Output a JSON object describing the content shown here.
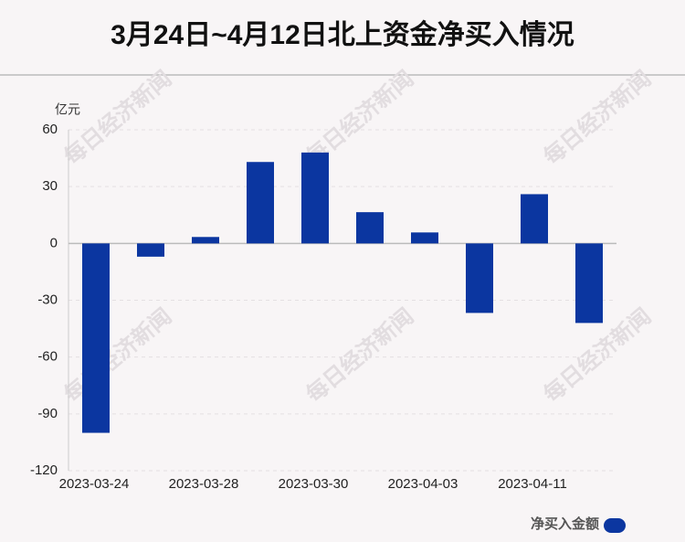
{
  "chart_data": {
    "type": "bar",
    "title": "3月24日~4月12日北上资金净买入情况",
    "y_unit": "亿元",
    "watermark": "每日经济新闻",
    "categories": [
      "2023-03-24",
      null,
      "2023-03-28",
      null,
      "2023-03-30",
      null,
      "2023-04-03",
      null,
      "2023-04-11",
      null
    ],
    "series": [
      {
        "name": "净买入金额",
        "color": "#0b36a0",
        "values": [
          -100,
          -7,
          3.4,
          43,
          48,
          16.5,
          5.8,
          -36.7,
          26,
          -42
        ]
      }
    ],
    "ylim": [
      -120,
      60
    ],
    "yticks": [
      60,
      30,
      0,
      -30,
      -60,
      -90,
      -120
    ],
    "grid": true,
    "legend": "bottom-right"
  }
}
